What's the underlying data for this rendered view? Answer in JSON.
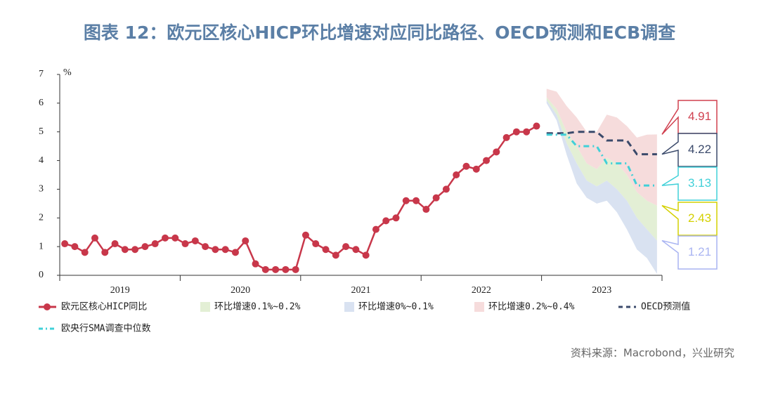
{
  "chart_data": {
    "type": "line",
    "title": "图表 12：欧元区核心HICP环比增速对应同比路径、OECD预测和ECB调查",
    "ylabel": "%",
    "source": "资料来源：Macrobond，兴业研究",
    "ylim": [
      0,
      7
    ],
    "yticks": [
      0,
      1,
      2,
      3,
      4,
      5,
      6,
      7
    ],
    "grid": false,
    "categories": [
      null,
      null,
      null,
      null,
      null,
      "2019",
      null,
      null,
      null,
      null,
      null,
      null,
      null,
      null,
      null,
      null,
      null,
      "2020",
      null,
      null,
      null,
      null,
      null,
      null,
      null,
      null,
      null,
      null,
      null,
      "2021",
      null,
      null,
      null,
      null,
      null,
      null,
      null,
      null,
      null,
      null,
      null,
      "2022",
      null,
      null,
      null,
      null,
      null,
      null,
      null,
      null,
      null,
      null,
      null,
      "2023",
      null,
      null,
      null,
      null,
      null,
      null
    ],
    "series": [
      {
        "name": "欧元区核心HICP同比",
        "color": "#c8374a",
        "style": "solid",
        "marker": "circle",
        "values": [
          1.1,
          1.0,
          0.8,
          1.3,
          0.8,
          1.1,
          0.9,
          0.9,
          1.0,
          1.1,
          1.3,
          1.3,
          1.1,
          1.2,
          1.0,
          0.9,
          0.9,
          0.8,
          1.2,
          0.4,
          0.2,
          0.2,
          0.2,
          0.2,
          1.4,
          1.1,
          0.9,
          0.7,
          1.0,
          0.9,
          0.7,
          1.6,
          1.9,
          2.0,
          2.6,
          2.6,
          2.3,
          2.7,
          3.0,
          3.5,
          3.8,
          3.7,
          4.0,
          4.3,
          4.8,
          5.0,
          5.0,
          5.2,
          null,
          null,
          null,
          null,
          null,
          null,
          null,
          null,
          null,
          null,
          null,
          null
        ]
      },
      {
        "name": "OECD预测值",
        "color": "#3b4a6b",
        "style": "dashed",
        "values": [
          null,
          null,
          null,
          null,
          null,
          null,
          null,
          null,
          null,
          null,
          null,
          null,
          null,
          null,
          null,
          null,
          null,
          null,
          null,
          null,
          null,
          null,
          null,
          null,
          null,
          null,
          null,
          null,
          null,
          null,
          null,
          null,
          null,
          null,
          null,
          null,
          null,
          null,
          null,
          null,
          null,
          null,
          null,
          null,
          null,
          null,
          null,
          null,
          4.95,
          4.95,
          4.95,
          5.0,
          5.0,
          5.0,
          4.7,
          4.7,
          4.7,
          4.22,
          4.22,
          4.22
        ]
      },
      {
        "name": "欧央行SMA调查中位数",
        "color": "#40d0d8",
        "style": "dashdot",
        "values": [
          null,
          null,
          null,
          null,
          null,
          null,
          null,
          null,
          null,
          null,
          null,
          null,
          null,
          null,
          null,
          null,
          null,
          null,
          null,
          null,
          null,
          null,
          null,
          null,
          null,
          null,
          null,
          null,
          null,
          null,
          null,
          null,
          null,
          null,
          null,
          null,
          null,
          null,
          null,
          null,
          null,
          null,
          null,
          null,
          null,
          null,
          null,
          null,
          4.9,
          4.9,
          4.9,
          4.5,
          4.5,
          4.5,
          3.9,
          3.9,
          3.9,
          3.13,
          3.13,
          3.13
        ]
      }
    ],
    "bands": [
      {
        "name": "环比增速0.1%~0.2%",
        "color": "#e3efd5",
        "label_color": "#d4d000",
        "upper": [
          null,
          null,
          null,
          null,
          null,
          null,
          null,
          null,
          null,
          null,
          null,
          null,
          null,
          null,
          null,
          null,
          null,
          null,
          null,
          null,
          null,
          null,
          null,
          null,
          null,
          null,
          null,
          null,
          null,
          null,
          null,
          null,
          null,
          null,
          null,
          null,
          null,
          null,
          null,
          null,
          null,
          null,
          null,
          null,
          null,
          null,
          null,
          null,
          6.2,
          5.8,
          5.0,
          4.5,
          3.9,
          3.7,
          4.1,
          3.9,
          3.5,
          2.9,
          2.6,
          2.43
        ],
        "lower": [
          null,
          null,
          null,
          null,
          null,
          null,
          null,
          null,
          null,
          null,
          null,
          null,
          null,
          null,
          null,
          null,
          null,
          null,
          null,
          null,
          null,
          null,
          null,
          null,
          null,
          null,
          null,
          null,
          null,
          null,
          null,
          null,
          null,
          null,
          null,
          null,
          null,
          null,
          null,
          null,
          null,
          null,
          null,
          null,
          null,
          null,
          null,
          null,
          6.1,
          5.6,
          4.6,
          3.9,
          3.3,
          3.1,
          3.3,
          3.0,
          2.6,
          2.0,
          1.6,
          1.21
        ]
      },
      {
        "name": "环比增速0%~0.1%",
        "color": "#d9e2f1",
        "label_color": "#a9b4f2",
        "upper": [
          null,
          null,
          null,
          null,
          null,
          null,
          null,
          null,
          null,
          null,
          null,
          null,
          null,
          null,
          null,
          null,
          null,
          null,
          null,
          null,
          null,
          null,
          null,
          null,
          null,
          null,
          null,
          null,
          null,
          null,
          null,
          null,
          null,
          null,
          null,
          null,
          null,
          null,
          null,
          null,
          null,
          null,
          null,
          null,
          null,
          null,
          null,
          null,
          6.1,
          5.6,
          4.6,
          3.9,
          3.3,
          3.1,
          3.3,
          3.0,
          2.6,
          2.0,
          1.6,
          1.21
        ],
        "lower": [
          null,
          null,
          null,
          null,
          null,
          null,
          null,
          null,
          null,
          null,
          null,
          null,
          null,
          null,
          null,
          null,
          null,
          null,
          null,
          null,
          null,
          null,
          null,
          null,
          null,
          null,
          null,
          null,
          null,
          null,
          null,
          null,
          null,
          null,
          null,
          null,
          null,
          null,
          null,
          null,
          null,
          null,
          null,
          null,
          null,
          null,
          null,
          null,
          6.0,
          5.4,
          4.2,
          3.2,
          2.7,
          2.5,
          2.6,
          2.2,
          1.6,
          0.9,
          0.6,
          0.05
        ]
      },
      {
        "name": "环比增速0.2%~0.4%",
        "color": "#f6dcdc",
        "label_color": "#d0404f",
        "upper": [
          null,
          null,
          null,
          null,
          null,
          null,
          null,
          null,
          null,
          null,
          null,
          null,
          null,
          null,
          null,
          null,
          null,
          null,
          null,
          null,
          null,
          null,
          null,
          null,
          null,
          null,
          null,
          null,
          null,
          null,
          null,
          null,
          null,
          null,
          null,
          null,
          null,
          null,
          null,
          null,
          null,
          null,
          null,
          null,
          null,
          null,
          null,
          null,
          6.5,
          6.4,
          5.9,
          5.5,
          5.0,
          5.0,
          5.6,
          5.5,
          5.2,
          4.8,
          4.9,
          4.91
        ],
        "lower": [
          null,
          null,
          null,
          null,
          null,
          null,
          null,
          null,
          null,
          null,
          null,
          null,
          null,
          null,
          null,
          null,
          null,
          null,
          null,
          null,
          null,
          null,
          null,
          null,
          null,
          null,
          null,
          null,
          null,
          null,
          null,
          null,
          null,
          null,
          null,
          null,
          null,
          null,
          null,
          null,
          null,
          null,
          null,
          null,
          null,
          null,
          null,
          null,
          6.2,
          5.8,
          5.0,
          4.5,
          3.9,
          3.7,
          4.1,
          3.9,
          3.5,
          2.9,
          2.6,
          2.43
        ]
      }
    ]
  }
}
